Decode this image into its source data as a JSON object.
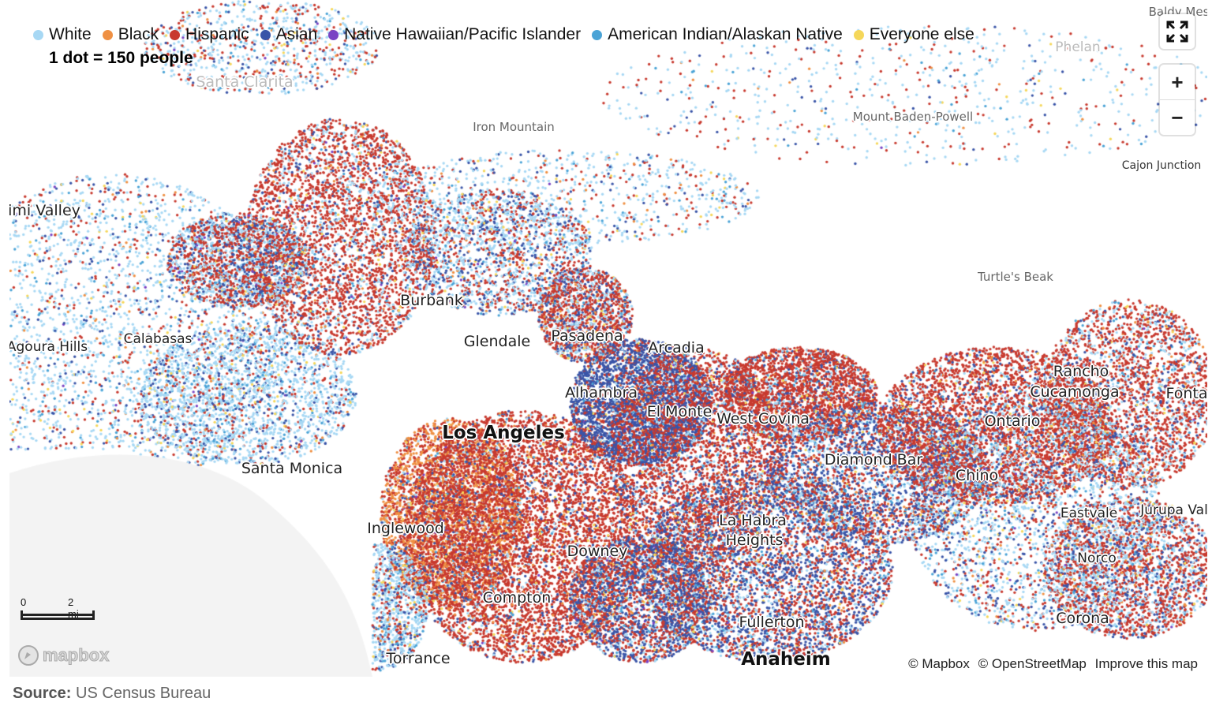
{
  "legend": [
    {
      "label": "White",
      "color": "#a7d8f4"
    },
    {
      "label": "Black",
      "color": "#ef9043"
    },
    {
      "label": "Hispanic",
      "color": "#c83a2f"
    },
    {
      "label": "Asian",
      "color": "#3a55a8"
    },
    {
      "label": "Native Hawaiian/Pacific Islander",
      "color": "#7a44c4"
    },
    {
      "label": "American Indian/Alaskan Native",
      "color": "#4aa3d6"
    },
    {
      "label": "Everyone else",
      "color": "#f5d75a"
    }
  ],
  "dot_note": "1 dot = 150 people",
  "places": {
    "baldy_mesa": "Baldy Mes",
    "phelan": "Phelan",
    "santa_clarita": "Santa Clarita",
    "iron_mountain": "Iron Mountain",
    "mount_baden_powell": "Mount Baden-Powell",
    "cajon_junction": "Cajon Junction",
    "simi_valley": "imi Valley",
    "turtles_beak": "Turtle's Beak",
    "burbank": "Burbank",
    "calabasas": "Calabasas",
    "agoura_hills": "Agoura Hills",
    "glendale": "Glendale",
    "pasadena": "Pasadena",
    "arcadia": "Arcadia",
    "rancho_cucamonga_1": "Rancho",
    "rancho_cucamonga_2": "Cucamonga",
    "fontana": "Fonta",
    "alhambra": "Alhambra",
    "el_monte": "El Monte",
    "west_covina": "West Covina",
    "ontario": "Ontario",
    "los_angeles": "Los Angeles",
    "diamond_bar": "Diamond Bar",
    "santa_monica": "Santa Monica",
    "chino": "Chino",
    "eastvale": "Eastvale",
    "jurupa_valley": "Jurupa Val",
    "la_habra_1": "La Habra",
    "la_habra_2": "Heights",
    "inglewood": "Inglewood",
    "downey": "Downey",
    "norco": "Norco",
    "compton": "Compton",
    "corona": "Corona",
    "fullerton": "Fullerton",
    "torrance": "Torrance",
    "anaheim": "Anaheim"
  },
  "controls": {
    "fullscreen_icon": "fullscreen-icon",
    "zoom_in": "+",
    "zoom_out": "−"
  },
  "scale": {
    "start": "0",
    "end": "2 mi"
  },
  "mapbox_logo": "mapbox",
  "attribution": {
    "mapbox": "© Mapbox",
    "osm": "© OpenStreetMap",
    "improve": "Improve this map"
  },
  "source": {
    "prefix": "Source:",
    "text": "US Census Bureau"
  }
}
